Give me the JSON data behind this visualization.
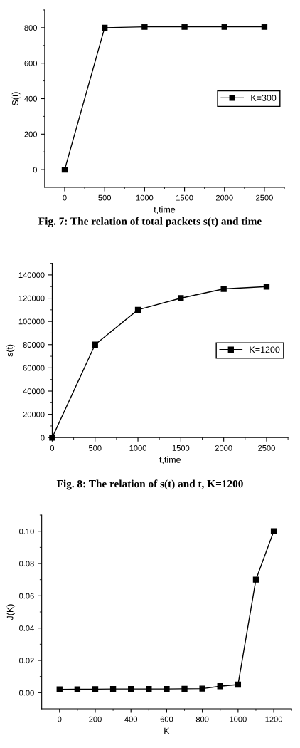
{
  "chart_data": [
    {
      "type": "line",
      "x": [
        0,
        500,
        1000,
        1500,
        2000,
        2500
      ],
      "xlabel": "t,time",
      "ylabel": "S(t)",
      "series": [
        {
          "name": "K=300",
          "color": "#000000",
          "values": [
            0,
            800,
            805,
            805,
            805,
            805
          ]
        }
      ],
      "xlim": [
        -250,
        2750
      ],
      "xticks": [
        0,
        500,
        1000,
        1500,
        2000,
        2500
      ],
      "ylim": [
        -100,
        900
      ],
      "yticks": [
        0,
        200,
        400,
        600,
        800
      ],
      "marker": "square",
      "line_style": "solid",
      "grid": false,
      "legend": "right",
      "annotations": [
        "Fig. 7: The relation of total packets s(t) and time"
      ]
    },
    {
      "type": "line",
      "x": [
        0,
        500,
        1000,
        1500,
        2000,
        2500
      ],
      "xlabel": "t,time",
      "ylabel": "s(t)",
      "series": [
        {
          "name": "K=1200",
          "color": "#000000",
          "values": [
            0,
            80000,
            110000,
            120000,
            128000,
            130000
          ]
        }
      ],
      "xlim": [
        0,
        2750
      ],
      "xticks": [
        0,
        500,
        1000,
        1500,
        2000,
        2500
      ],
      "ylim": [
        0,
        150000
      ],
      "yticks": [
        0,
        20000,
        40000,
        60000,
        80000,
        100000,
        120000,
        140000
      ],
      "marker": "square",
      "line_style": "solid",
      "grid": false,
      "legend": "right",
      "annotations": [
        "Fig. 8: The relation of s(t) and t, K=1200"
      ]
    },
    {
      "type": "line",
      "x": [
        0,
        100,
        200,
        300,
        400,
        500,
        600,
        700,
        800,
        900,
        1000,
        1100,
        1200
      ],
      "xlabel": "K",
      "ylabel": "J(K)",
      "series": [
        {
          "color": "#000000",
          "values": [
            0.002,
            0.0021,
            0.0022,
            0.0023,
            0.0023,
            0.0023,
            0.0023,
            0.0024,
            0.0025,
            0.004,
            0.005,
            0.07,
            0.1
          ]
        }
      ],
      "xlim": [
        -100,
        1300
      ],
      "xticks": [
        0,
        200,
        400,
        600,
        800,
        1000,
        1200
      ],
      "ylim": [
        -0.01,
        0.11
      ],
      "yticks": [
        {
          "value": 0,
          "label": "0.00"
        },
        {
          "value": 0.02,
          "label": "0.02"
        },
        {
          "value": 0.04,
          "label": "0.04"
        },
        {
          "value": 0.06,
          "label": "0.06"
        },
        {
          "value": 0.08,
          "label": "0.08"
        },
        {
          "value": 0.1,
          "label": "0.10"
        }
      ],
      "marker": "square",
      "line_style": "solid",
      "grid": false,
      "legend": false
    }
  ]
}
